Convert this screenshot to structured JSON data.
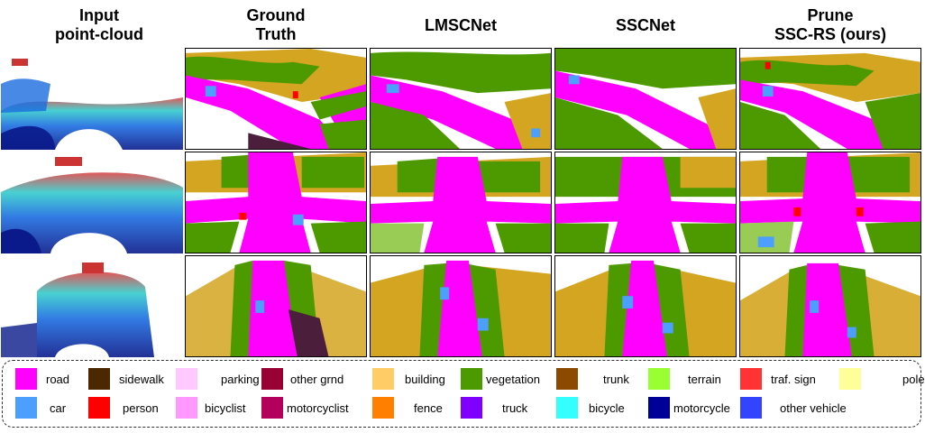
{
  "columns": [
    {
      "line1": "Input",
      "line2": "point-cloud"
    },
    {
      "line1": "Ground",
      "line2": "Truth"
    },
    {
      "line1": "LMSCNet",
      "line2": ""
    },
    {
      "line1": "SSCNet",
      "line2": ""
    },
    {
      "line1": "Prune",
      "line2": "SSC-RS (ours)"
    }
  ],
  "legend": {
    "row1": [
      {
        "label": "road",
        "color": "#ff00ff"
      },
      {
        "label": "sidewalk",
        "color": "#4b2800"
      },
      {
        "label": "parking",
        "color": "#ffc8ff"
      },
      {
        "label": "other grnd",
        "color": "#990033"
      },
      {
        "label": "building",
        "color": "#ffcc66"
      },
      {
        "label": "vegetation",
        "color": "#4d9900"
      },
      {
        "label": "trunk",
        "color": "#8c4a00"
      },
      {
        "label": "terrain",
        "color": "#99ff33"
      },
      {
        "label": "traf. sign",
        "color": "#ff3333"
      },
      {
        "label": "pole",
        "color": "#ffff99"
      }
    ],
    "row2": [
      {
        "label": "car",
        "color": "#4d9fff"
      },
      {
        "label": "person",
        "color": "#ff0000"
      },
      {
        "label": "bicyclist",
        "color": "#ff99ff"
      },
      {
        "label": "motorcyclist",
        "color": "#b3005c"
      },
      {
        "label": "fence",
        "color": "#ff8000"
      },
      {
        "label": "truck",
        "color": "#8000ff"
      },
      {
        "label": "bicycle",
        "color": "#33ffff"
      },
      {
        "label": "motorcycle",
        "color": "#000099"
      },
      {
        "label": "other vehicle",
        "color": "#3344ff"
      }
    ]
  }
}
